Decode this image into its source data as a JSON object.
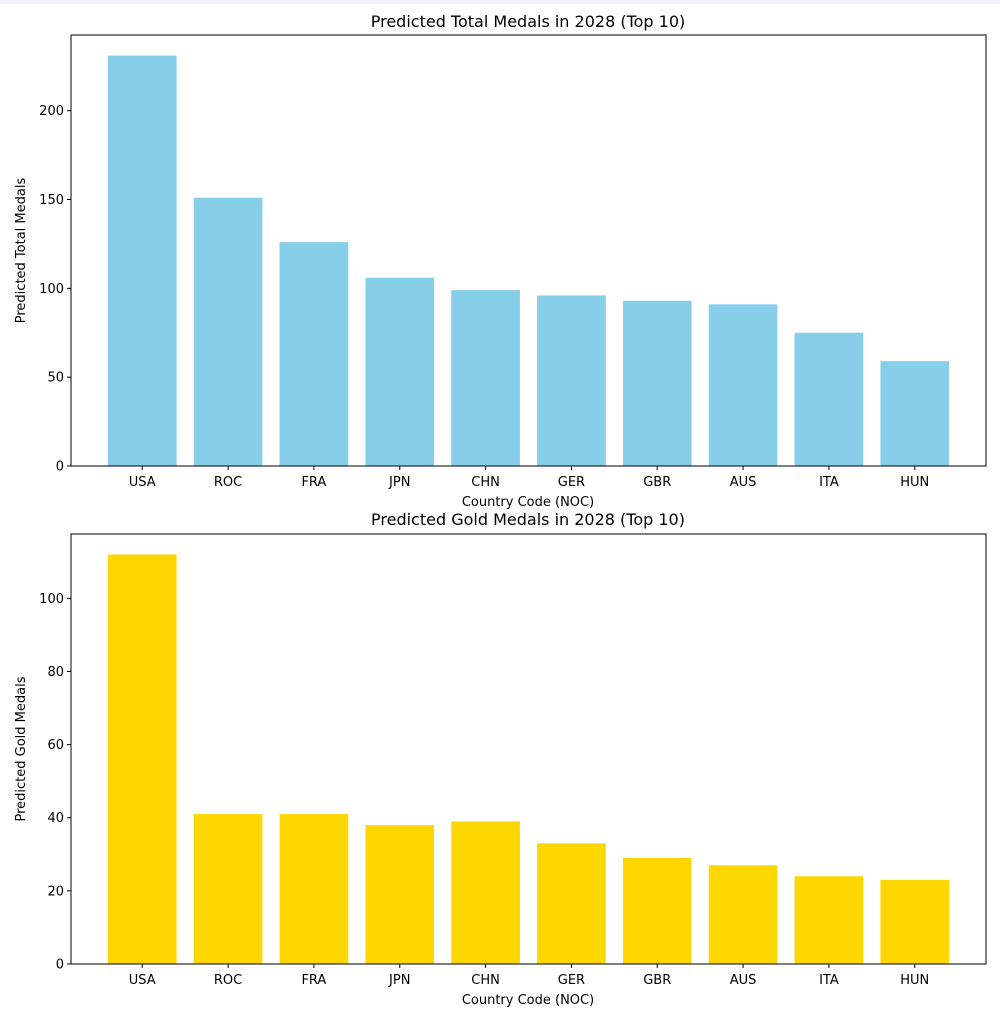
{
  "chart_data": [
    {
      "type": "bar",
      "title": "Predicted Total Medals in 2028 (Top 10)",
      "xlabel": "Country Code (NOC)",
      "ylabel": "Predicted Total Medals",
      "categories": [
        "USA",
        "ROC",
        "FRA",
        "JPN",
        "CHN",
        "GER",
        "GBR",
        "AUS",
        "ITA",
        "HUN"
      ],
      "values": [
        231,
        151,
        126,
        106,
        99,
        96,
        93,
        91,
        75,
        59
      ],
      "yticks": [
        0,
        50,
        100,
        150,
        200
      ],
      "ylim": [
        0,
        242.6
      ],
      "color": "#87CEEB",
      "grid": false,
      "legend": "none"
    },
    {
      "type": "bar",
      "title": "Predicted Gold Medals in 2028 (Top 10)",
      "xlabel": "Country Code (NOC)",
      "ylabel": "Predicted Gold Medals",
      "categories": [
        "USA",
        "ROC",
        "FRA",
        "JPN",
        "CHN",
        "GER",
        "GBR",
        "AUS",
        "ITA",
        "HUN"
      ],
      "values": [
        112,
        41,
        41,
        38,
        39,
        33,
        29,
        27,
        24,
        23
      ],
      "yticks": [
        0,
        20,
        40,
        60,
        80,
        100
      ],
      "ylim": [
        0,
        117.6
      ],
      "color": "#FFD700",
      "grid": false,
      "legend": "none"
    }
  ]
}
